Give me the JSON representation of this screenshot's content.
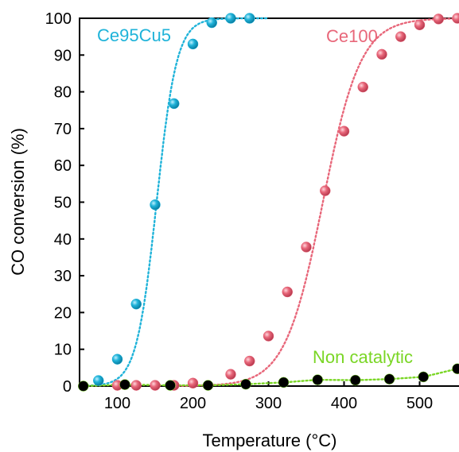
{
  "chart_data": {
    "type": "scatter",
    "xlabel": "Temperature (°C)",
    "ylabel": "CO conversion (%)",
    "xlim": [
      50,
      550
    ],
    "ylim": [
      0,
      100
    ],
    "xticks": [
      100,
      200,
      300,
      400,
      500
    ],
    "yticks": [
      0,
      10,
      20,
      30,
      40,
      50,
      60,
      70,
      80,
      90,
      100
    ],
    "grid": false,
    "legend": "inline labels next to each curve",
    "series": [
      {
        "name": "Ce95Cu5",
        "color": "#1fb3d9",
        "points": [
          {
            "x": 75,
            "y": 1.5
          },
          {
            "x": 100,
            "y": 7.3
          },
          {
            "x": 125,
            "y": 22.3
          },
          {
            "x": 150,
            "y": 49.3
          },
          {
            "x": 175,
            "y": 76.8
          },
          {
            "x": 200,
            "y": 93.0
          },
          {
            "x": 225,
            "y": 98.8
          },
          {
            "x": 250,
            "y": 100
          },
          {
            "x": 275,
            "y": 100
          }
        ],
        "fit": {
          "type": "sigmoid",
          "x0": 152,
          "k": 0.075,
          "ymin": 0,
          "ymax": 100,
          "xmin": 55,
          "xmax": 300
        }
      },
      {
        "name": "Ce100",
        "color": "#e8677a",
        "points": [
          {
            "x": 100,
            "y": 0.2
          },
          {
            "x": 125,
            "y": 0.2
          },
          {
            "x": 150,
            "y": 0.2
          },
          {
            "x": 175,
            "y": 0.2
          },
          {
            "x": 200,
            "y": 0.8
          },
          {
            "x": 250,
            "y": 3.2
          },
          {
            "x": 275,
            "y": 6.8
          },
          {
            "x": 300,
            "y": 13.6
          },
          {
            "x": 325,
            "y": 25.6
          },
          {
            "x": 350,
            "y": 37.8
          },
          {
            "x": 375,
            "y": 53.1
          },
          {
            "x": 400,
            "y": 69.3
          },
          {
            "x": 425,
            "y": 81.3
          },
          {
            "x": 450,
            "y": 90.2
          },
          {
            "x": 475,
            "y": 95.0
          },
          {
            "x": 500,
            "y": 98.2
          },
          {
            "x": 525,
            "y": 99.8
          },
          {
            "x": 550,
            "y": 100
          }
        ],
        "fit": {
          "type": "sigmoid",
          "x0": 372,
          "k": 0.04,
          "ymin": 0,
          "ymax": 100,
          "xmin": 180,
          "xmax": 555
        }
      },
      {
        "name": "Non catalytic",
        "color": "#7ad625",
        "points": [
          {
            "x": 55,
            "y": 0.0
          },
          {
            "x": 110,
            "y": 0.4
          },
          {
            "x": 170,
            "y": 0.2
          },
          {
            "x": 220,
            "y": 0.2
          },
          {
            "x": 270,
            "y": 0.5
          },
          {
            "x": 320,
            "y": 1.0
          },
          {
            "x": 365,
            "y": 1.7
          },
          {
            "x": 415,
            "y": 1.6
          },
          {
            "x": 460,
            "y": 1.9
          },
          {
            "x": 505,
            "y": 2.5
          },
          {
            "x": 550,
            "y": 4.7
          }
        ],
        "fit": {
          "type": "polyline"
        }
      }
    ]
  }
}
